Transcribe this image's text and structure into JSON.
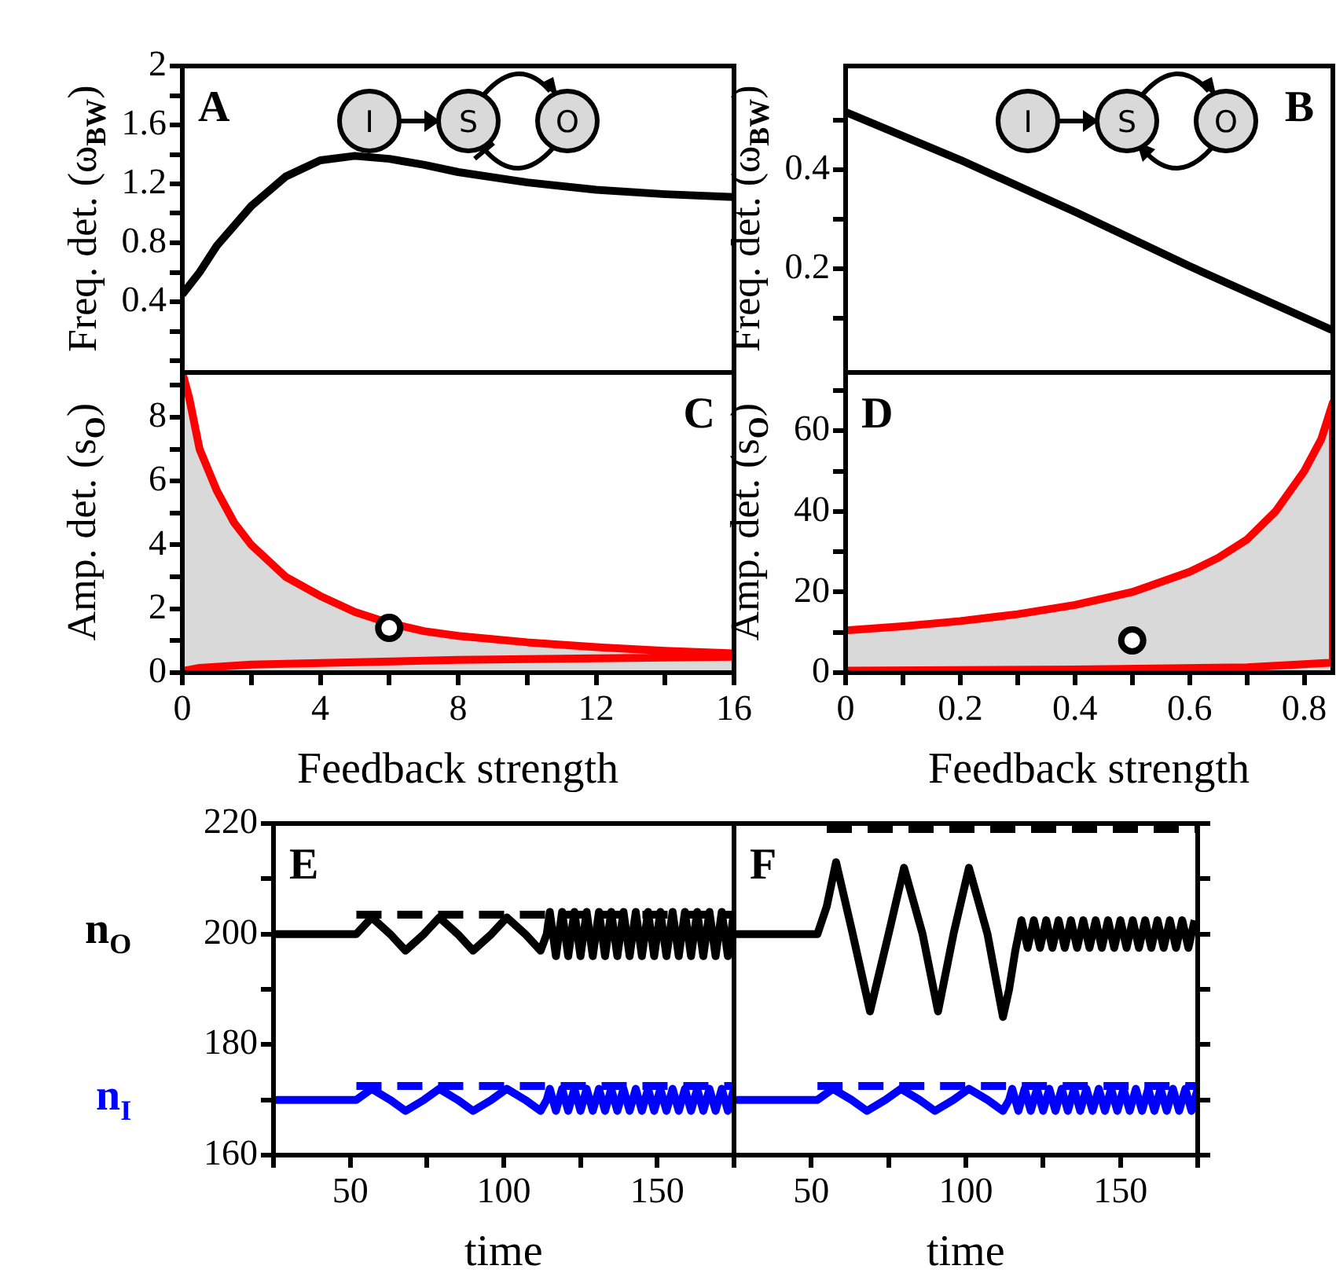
{
  "chart_data": [
    {
      "type": "line",
      "ylabel": "Freq. det. (ω$_{BW}$)",
      "xlim": [
        0,
        16
      ],
      "ylim": [
        -0.08,
        2
      ],
      "tick_labels": "y",
      "marker": "none",
      "annotations": [
        "A",
        "I",
        "S",
        "O"
      ],
      "yticks": [
        {
          "value": 0,
          "label": null
        },
        {
          "value": 0.2,
          "label": null
        },
        0.4,
        {
          "value": 0.6,
          "label": null
        },
        0.8,
        {
          "value": 1,
          "label": null
        },
        1.2,
        {
          "value": 1.4,
          "label": null
        },
        1.6,
        {
          "value": 1.8,
          "label": null
        },
        2
      ],
      "series": [
        {
          "color": "#000000",
          "x": [
            0,
            0.5,
            1,
            2,
            3,
            4,
            5,
            6,
            7,
            8,
            10,
            12,
            14,
            16
          ],
          "values": [
            0.45,
            0.6,
            0.78,
            1.05,
            1.25,
            1.36,
            1.39,
            1.37,
            1.33,
            1.28,
            1.21,
            1.16,
            1.13,
            1.11
          ]
        }
      ]
    },
    {
      "type": "line",
      "ylabel": "Freq. det. (ω$_{BW}$)",
      "xlim": [
        0,
        0.85
      ],
      "ylim": [
        -0.01,
        0.61
      ],
      "tick_labels": "y",
      "marker": "none",
      "annotations": [
        "B",
        "I",
        "S",
        "O"
      ],
      "yticks": [
        {
          "value": 0.1,
          "label": null
        },
        0.2,
        {
          "value": 0.3,
          "label": null
        },
        0.4,
        {
          "value": 0.5,
          "label": null
        }
      ],
      "series": [
        {
          "color": "#000000",
          "x": [
            0,
            0.2,
            0.4,
            0.6,
            0.85
          ],
          "values": [
            0.517,
            0.42,
            0.315,
            0.205,
            0.075
          ]
        }
      ]
    },
    {
      "type": "line",
      "ylabel": "Amp. det. (s$_{O}$)",
      "xlabel": "Feedback strength",
      "xlim": [
        0,
        16
      ],
      "ylim": [
        0,
        9.4
      ],
      "marker": "none",
      "annotations": [
        "C"
      ],
      "xticks": [
        0,
        {
          "value": 2,
          "label": null
        },
        4,
        {
          "value": 6,
          "label": null
        },
        8,
        {
          "value": 10,
          "label": null
        },
        12,
        {
          "value": 14,
          "label": null
        },
        16
      ],
      "yticks": [
        0,
        {
          "value": 1,
          "label": null
        },
        2,
        {
          "value": 3,
          "label": null
        },
        4,
        {
          "value": 5,
          "label": null
        },
        6,
        {
          "value": 7,
          "label": null
        },
        8,
        {
          "value": 9,
          "label": null
        }
      ],
      "series": [
        {
          "type": "scatter",
          "marker": "circle",
          "color": "#000000",
          "x": [
            6
          ],
          "values": [
            1.4
          ]
        },
        {
          "color": "#ff0000",
          "x": [
            0,
            0.2,
            0.5,
            1,
            1.5,
            2,
            3,
            4,
            5,
            6,
            7,
            8,
            10,
            12,
            14,
            16,
            16,
            12,
            8,
            4,
            2,
            0.5,
            0
          ],
          "values": [
            9.4,
            8.6,
            7.0,
            5.7,
            4.7,
            4.0,
            3.0,
            2.4,
            1.9,
            1.55,
            1.3,
            1.15,
            0.95,
            0.8,
            0.68,
            0.6,
            0.5,
            0.45,
            0.4,
            0.3,
            0.25,
            0.15,
            0.05
          ]
        },
        {
          "type": "area",
          "color": "#d9d9d9",
          "x": [
            0,
            0.2,
            0.5,
            1,
            1.5,
            2,
            3,
            4,
            5,
            6,
            7,
            8,
            10,
            12,
            14,
            16
          ],
          "values": [
            9.4,
            8.6,
            7.0,
            5.7,
            4.7,
            4.0,
            3.0,
            2.4,
            1.9,
            1.55,
            1.3,
            1.15,
            0.95,
            0.8,
            0.68,
            0.6
          ]
        }
      ]
    },
    {
      "type": "line",
      "ylabel": "Amp. det. (s$_{O}$)",
      "xlabel": "Feedback strength",
      "xlim": [
        0,
        0.85
      ],
      "ylim": [
        0,
        74.5
      ],
      "marker": "none",
      "annotations": [
        "D"
      ],
      "xticks": [
        0,
        {
          "value": 0.1,
          "label": null
        },
        0.2,
        {
          "value": 0.3,
          "label": null
        },
        0.4,
        {
          "value": 0.5,
          "label": null
        },
        0.6,
        {
          "value": 0.7,
          "label": null
        },
        0.8
      ],
      "yticks": [
        0,
        {
          "value": 10,
          "label": null
        },
        20,
        {
          "value": 30,
          "label": null
        },
        40,
        {
          "value": 50,
          "label": null
        },
        60,
        {
          "value": 70,
          "label": null
        }
      ],
      "series": [
        {
          "type": "scatter",
          "marker": "circle",
          "color": "#000000",
          "x": [
            0.5
          ],
          "values": [
            8
          ]
        },
        {
          "color": "#ff0000",
          "x": [
            0,
            0.1,
            0.2,
            0.3,
            0.4,
            0.5,
            0.6,
            0.65,
            0.7,
            0.75,
            0.8,
            0.83,
            0.85,
            0.85,
            0.7,
            0.4,
            0
          ],
          "values": [
            10.5,
            11.5,
            12.8,
            14.5,
            16.8,
            20,
            25,
            28.5,
            33,
            40,
            50,
            58,
            67,
            2.5,
            1.3,
            0.8,
            0.5
          ]
        },
        {
          "type": "area",
          "color": "#d9d9d9",
          "x": [
            0,
            0.1,
            0.2,
            0.3,
            0.4,
            0.5,
            0.6,
            0.65,
            0.7,
            0.75,
            0.8,
            0.83,
            0.85
          ],
          "values": [
            10.5,
            11.5,
            12.8,
            14.5,
            16.8,
            20,
            25,
            28.5,
            33,
            40,
            50,
            58,
            67
          ]
        }
      ]
    },
    {
      "type": "line",
      "xlabel": "time",
      "xlim": [
        25,
        175
      ],
      "ylim": [
        160,
        220
      ],
      "marker": "none",
      "legend": "left",
      "annotations": [
        "E"
      ],
      "xticks": [
        {
          "value": 25,
          "label": null
        },
        50,
        {
          "value": 75,
          "label": null
        },
        100,
        {
          "value": 125,
          "label": null
        },
        150,
        {
          "value": 175,
          "label": null
        }
      ],
      "yticks": [
        160,
        {
          "value": 170,
          "label": null
        },
        180,
        {
          "value": 190,
          "label": null
        },
        200,
        {
          "value": 210,
          "label": null
        },
        220
      ],
      "series": [
        {
          "name": "n$_{O}$",
          "color": "#000000",
          "x": [
            25,
            52,
            57,
            63,
            68,
            74,
            79,
            85,
            90,
            96,
            101,
            107,
            112,
            114,
            115,
            117,
            119,
            121,
            123,
            125,
            127,
            129,
            131,
            133,
            135,
            137,
            139,
            141,
            143,
            145,
            147,
            149,
            151,
            153,
            155,
            157,
            159,
            161,
            163,
            165,
            167,
            169,
            171,
            173,
            175
          ],
          "values": [
            200,
            200,
            203,
            200,
            197,
            200,
            203,
            200,
            197,
            200,
            203,
            200,
            197,
            200,
            204,
            196,
            204,
            196,
            204,
            196,
            204,
            196,
            204,
            196,
            204,
            196,
            204,
            196,
            204,
            196,
            204,
            196,
            204,
            196,
            204,
            196,
            204,
            196,
            204,
            196,
            204,
            196,
            204,
            196,
            204
          ]
        },
        {
          "color": "#000000",
          "line_style": "dashed",
          "x": [
            52,
            175
          ],
          "values": [
            203.5,
            203.5
          ]
        },
        {
          "name": "n$_{I}$",
          "color": "#0000ff",
          "x": [
            25,
            52,
            57,
            63,
            68,
            74,
            79,
            85,
            90,
            96,
            101,
            107,
            112,
            114,
            115,
            117,
            119,
            121,
            123,
            125,
            127,
            129,
            131,
            133,
            135,
            137,
            139,
            141,
            143,
            145,
            147,
            149,
            151,
            153,
            155,
            157,
            159,
            161,
            163,
            165,
            167,
            169,
            171,
            173,
            175
          ],
          "values": [
            170,
            170,
            172,
            170,
            168,
            170,
            172,
            170,
            168,
            170,
            172,
            170,
            168,
            170,
            172,
            168,
            172,
            168,
            172,
            168,
            172,
            168,
            172,
            168,
            172,
            168,
            172,
            168,
            172,
            168,
            172,
            168,
            172,
            168,
            172,
            168,
            172,
            168,
            172,
            168,
            172,
            168,
            172,
            168,
            172
          ]
        },
        {
          "color": "#0000ff",
          "line_style": "dashed",
          "x": [
            52,
            175
          ],
          "values": [
            172.5,
            172.5
          ]
        }
      ]
    },
    {
      "type": "line",
      "xlabel": "time",
      "xlim": [
        25,
        175
      ],
      "ylim": [
        160,
        220
      ],
      "tick_labels": "x",
      "marker": "none",
      "annotations": [
        "F"
      ],
      "xticks": [
        {
          "value": 25,
          "label": null
        },
        50,
        {
          "value": 75,
          "label": null
        },
        100,
        {
          "value": 125,
          "label": null
        },
        150,
        {
          "value": 175,
          "label": null
        }
      ],
      "yticks": [
        160,
        {
          "value": 170,
          "label": null
        },
        180,
        {
          "value": 190,
          "label": null
        },
        200,
        {
          "value": 210,
          "label": null
        },
        220
      ],
      "series": [
        {
          "color": "#000000",
          "x": [
            25,
            52,
            55,
            58,
            63,
            69,
            75,
            80,
            86,
            91,
            96,
            101,
            107,
            112,
            114,
            116,
            118,
            120,
            122,
            124,
            126,
            128,
            130,
            132,
            134,
            136,
            138,
            140,
            142,
            144,
            146,
            148,
            150,
            152,
            154,
            156,
            158,
            160,
            162,
            164,
            166,
            168,
            170,
            172,
            174
          ],
          "values": [
            200,
            200,
            205,
            213,
            201,
            186,
            200,
            212,
            200,
            186,
            200,
            212,
            200,
            185,
            190,
            197,
            202.5,
            197.5,
            202.5,
            197.5,
            202.5,
            197.5,
            202.5,
            197.5,
            202.5,
            197.5,
            202.5,
            197.5,
            202.5,
            197.5,
            202.5,
            197.5,
            202.5,
            197.5,
            202.5,
            197.5,
            202.5,
            197.5,
            202.5,
            197.5,
            202.5,
            197.5,
            202.5,
            197.5,
            202.5
          ]
        },
        {
          "color": "#000000",
          "line_style": "dashed",
          "x": [
            55,
            175
          ],
          "values": [
            219,
            219
          ]
        },
        {
          "color": "#0000ff",
          "x": [
            25,
            52,
            57,
            63,
            68,
            74,
            79,
            85,
            90,
            96,
            101,
            107,
            112,
            114,
            115,
            117,
            119,
            121,
            123,
            125,
            127,
            129,
            131,
            133,
            135,
            137,
            139,
            141,
            143,
            145,
            147,
            149,
            151,
            153,
            155,
            157,
            159,
            161,
            163,
            165,
            167,
            169,
            171,
            173,
            175
          ],
          "values": [
            170,
            170,
            172,
            170,
            168,
            170,
            172,
            170,
            168,
            170,
            172,
            170,
            168,
            170,
            172,
            168,
            172,
            168,
            172,
            168,
            172,
            168,
            172,
            168,
            172,
            168,
            172,
            168,
            172,
            168,
            172,
            168,
            172,
            168,
            172,
            168,
            172,
            168,
            172,
            168,
            172,
            168,
            172,
            168,
            172
          ]
        },
        {
          "color": "#0000ff",
          "line_style": "dashed",
          "x": [
            52,
            175
          ],
          "values": [
            172.5,
            172.5
          ]
        }
      ]
    }
  ]
}
